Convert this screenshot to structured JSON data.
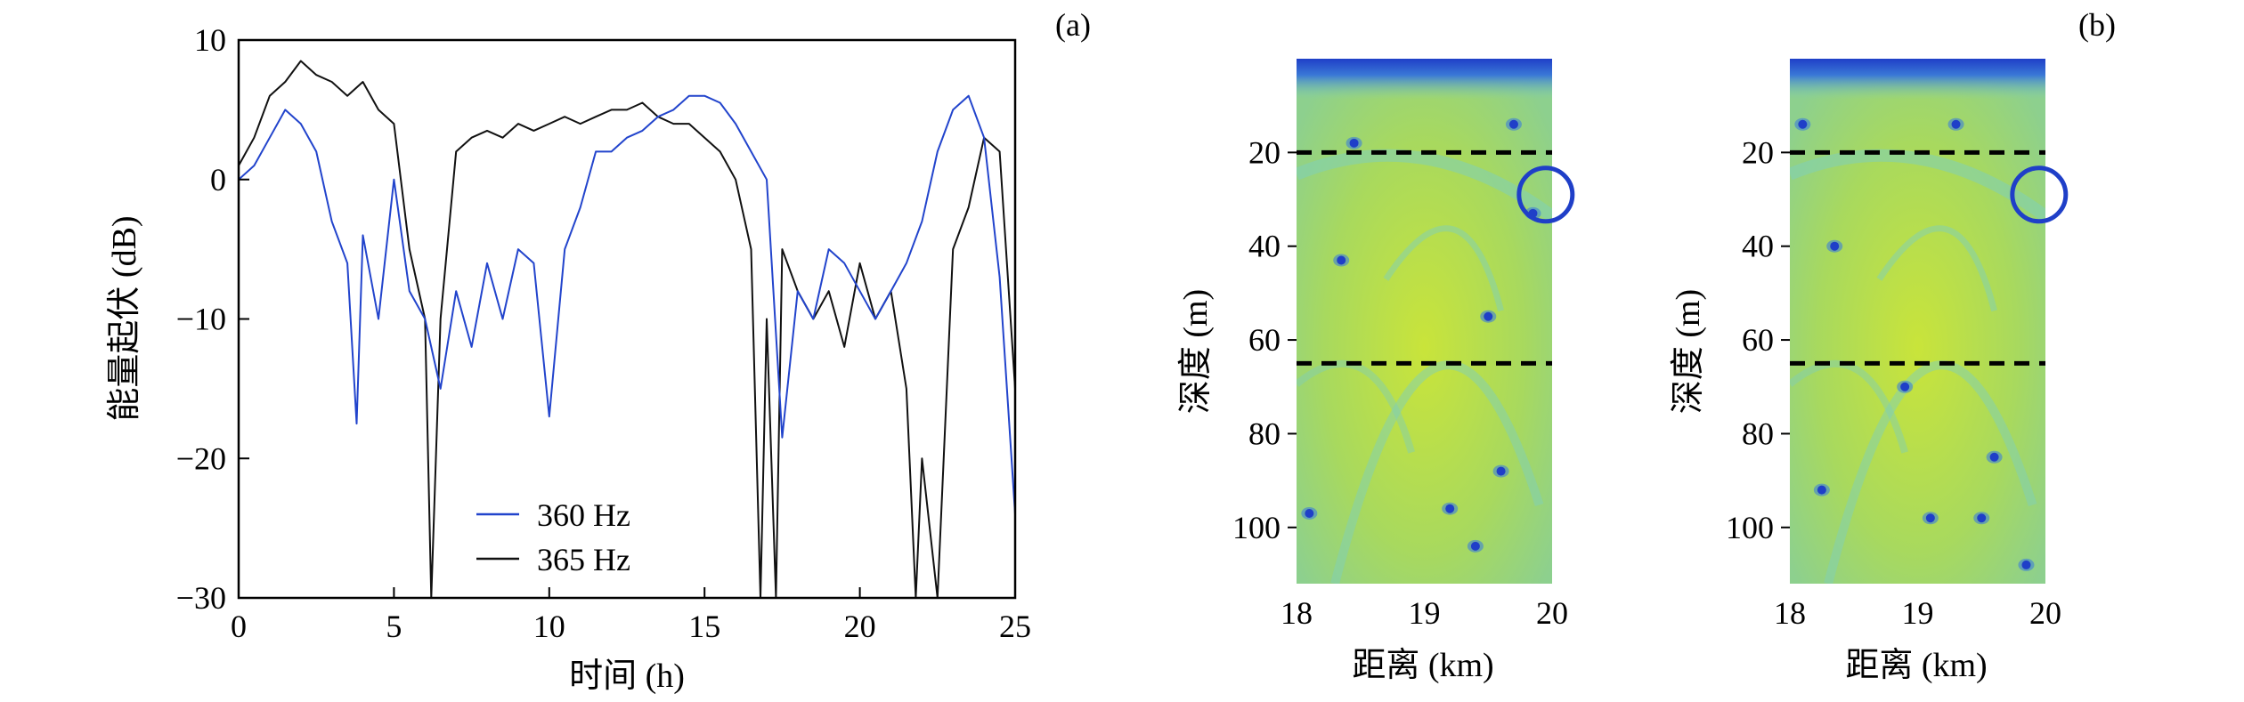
{
  "panel_labels": {
    "a": "(a)",
    "b": "(b)"
  },
  "colors": {
    "series_360": "#2244cc",
    "series_365": "#111111",
    "field_base": "#a6d86a",
    "field_bright": "#c4e23c",
    "field_null": "#1f3fc8",
    "field_band": "#7fcfb8",
    "circle": "#1f3fc8"
  },
  "chart_data": [
    {
      "type": "line",
      "panel": "(a)",
      "xlabel": "时间 (h)",
      "ylabel": "能量起伏 (dB)",
      "xlim": [
        0,
        25
      ],
      "ylim": [
        -30,
        10
      ],
      "xticks": [
        0,
        5,
        10,
        15,
        20,
        25
      ],
      "yticks": [
        10,
        0,
        -10,
        -20,
        -30
      ],
      "xtick_labels": [
        "0",
        "5",
        "10",
        "15",
        "20",
        "25"
      ],
      "ytick_labels": [
        "10",
        "0",
        "−10",
        "−20",
        "−30"
      ],
      "legend_placement": "lower-center",
      "series": [
        {
          "name": "360 Hz",
          "color": "#2244cc",
          "x": [
            0,
            0.5,
            1,
            1.5,
            2,
            2.5,
            3,
            3.5,
            3.8,
            4,
            4.5,
            5,
            5.5,
            6,
            6.5,
            7,
            7.5,
            8,
            8.5,
            9,
            9.5,
            10,
            10.5,
            11,
            11.5,
            12,
            12.5,
            13,
            13.5,
            14,
            14.5,
            15,
            15.5,
            16,
            16.5,
            17,
            17.5,
            18,
            18.5,
            19,
            19.5,
            20,
            20.5,
            21,
            21.5,
            22,
            22.5,
            23,
            23.5,
            24,
            24.5,
            25
          ],
          "y": [
            0,
            1,
            3,
            5,
            4,
            2,
            -3,
            -6,
            -17.5,
            -4,
            -10,
            0,
            -8,
            -10,
            -15,
            -8,
            -12,
            -6,
            -10,
            -5,
            -6,
            -17,
            -5,
            -2,
            2,
            2,
            3,
            3.5,
            4.5,
            5,
            6,
            6,
            5.5,
            4,
            2,
            0,
            -18.5,
            -8,
            -10,
            -5,
            -6,
            -8,
            -10,
            -8,
            -6,
            -3,
            2,
            5,
            6,
            3,
            -7,
            -24
          ]
        },
        {
          "name": "365 Hz",
          "color": "#111111",
          "x": [
            0,
            0.5,
            1,
            1.5,
            2,
            2.5,
            3,
            3.5,
            4,
            4.5,
            5,
            5.5,
            6,
            6.2,
            6.5,
            7,
            7.5,
            8,
            8.5,
            9,
            9.5,
            10,
            10.5,
            11,
            11.5,
            12,
            12.5,
            13,
            13.5,
            14,
            14.5,
            15,
            15.5,
            16,
            16.5,
            16.8,
            17,
            17.3,
            17.5,
            18,
            18.5,
            19,
            19.5,
            20,
            20.5,
            21,
            21.5,
            21.8,
            22,
            22.5,
            23,
            23.5,
            24,
            24.5,
            25
          ],
          "y": [
            1,
            3,
            6,
            7,
            8.5,
            7.5,
            7,
            6,
            7,
            5,
            4,
            -5,
            -10,
            -30,
            -10,
            2,
            3,
            3.5,
            3,
            4,
            3.5,
            4,
            4.5,
            4,
            4.5,
            5,
            5,
            5.5,
            4.5,
            4,
            4,
            3,
            2,
            0,
            -5,
            -30,
            -10,
            -30,
            -5,
            -8,
            -10,
            -8,
            -12,
            -6,
            -10,
            -8,
            -15,
            -30,
            -20,
            -30,
            -5,
            -2,
            3,
            2,
            -15
          ]
        }
      ]
    },
    {
      "type": "heatmap",
      "panel": "(b-left)",
      "xlabel": "距离 (km)",
      "ylabel": "深度 (m)",
      "xlim": [
        18,
        20
      ],
      "ylim": [
        112,
        0
      ],
      "xticks": [
        18,
        19,
        20
      ],
      "yticks": [
        20,
        40,
        60,
        80,
        100
      ],
      "xtick_labels": [
        "18",
        "19",
        "20"
      ],
      "ytick_labels": [
        "20",
        "40",
        "60",
        "80",
        "100"
      ],
      "dashed_lines_depth": [
        20,
        65
      ],
      "circle_marker": {
        "range_km": 19.95,
        "depth_m": 29
      },
      "null_spots": [
        {
          "range_km": 18.45,
          "depth_m": 18
        },
        {
          "range_km": 19.7,
          "depth_m": 14
        },
        {
          "range_km": 18.35,
          "depth_m": 43
        },
        {
          "range_km": 19.5,
          "depth_m": 55
        },
        {
          "range_km": 19.6,
          "depth_m": 88
        },
        {
          "range_km": 18.1,
          "depth_m": 97
        },
        {
          "range_km": 19.2,
          "depth_m": 96
        },
        {
          "range_km": 19.85,
          "depth_m": 33
        },
        {
          "range_km": 19.4,
          "depth_m": 104
        }
      ]
    },
    {
      "type": "heatmap",
      "panel": "(b-right)",
      "xlabel": "距离 (km)",
      "ylabel": "深度 (m)",
      "xlim": [
        18,
        20
      ],
      "ylim": [
        112,
        0
      ],
      "xticks": [
        18,
        19,
        20
      ],
      "yticks": [
        20,
        40,
        60,
        80,
        100
      ],
      "xtick_labels": [
        "18",
        "19",
        "20"
      ],
      "ytick_labels": [
        "20",
        "40",
        "60",
        "80",
        "100"
      ],
      "dashed_lines_depth": [
        20,
        65
      ],
      "circle_marker": {
        "range_km": 19.95,
        "depth_m": 29
      },
      "null_spots": [
        {
          "range_km": 18.1,
          "depth_m": 14
        },
        {
          "range_km": 19.3,
          "depth_m": 14
        },
        {
          "range_km": 18.35,
          "depth_m": 40
        },
        {
          "range_km": 18.9,
          "depth_m": 70
        },
        {
          "range_km": 19.6,
          "depth_m": 85
        },
        {
          "range_km": 19.1,
          "depth_m": 98
        },
        {
          "range_km": 19.5,
          "depth_m": 98
        },
        {
          "range_km": 19.85,
          "depth_m": 108
        },
        {
          "range_km": 18.25,
          "depth_m": 92
        }
      ]
    }
  ]
}
